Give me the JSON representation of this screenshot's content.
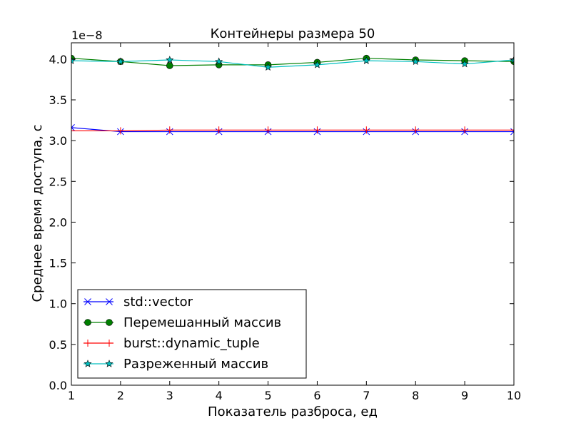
{
  "chart_data": {
    "type": "line",
    "title": "Контейнеры размера 50",
    "xlabel": "Показатель разброса, ед",
    "ylabel": "Среднее время доступа, с",
    "y_offset_label": "1e−8",
    "xlim": [
      1,
      10
    ],
    "ylim": [
      0.0,
      4.2
    ],
    "x_ticks": [
      "1",
      "2",
      "3",
      "4",
      "5",
      "6",
      "7",
      "8",
      "9",
      "10"
    ],
    "y_ticks": [
      "0.0",
      "0.5",
      "1.0",
      "1.5",
      "2.0",
      "2.5",
      "3.0",
      "3.5",
      "4.0"
    ],
    "grid": false,
    "legend_position": "lower-left",
    "x": [
      1,
      2,
      3,
      4,
      5,
      6,
      7,
      8,
      9,
      10
    ],
    "series": [
      {
        "name": "std::vector",
        "color": "#0000ff",
        "marker": "x",
        "values": [
          3.16,
          3.11,
          3.11,
          3.11,
          3.11,
          3.11,
          3.11,
          3.11,
          3.11,
          3.11
        ]
      },
      {
        "name": "Перемешанный массив",
        "color": "#007f00",
        "marker": "circle",
        "values": [
          4.01,
          3.97,
          3.92,
          3.93,
          3.93,
          3.96,
          4.01,
          3.99,
          3.98,
          3.97
        ]
      },
      {
        "name": "burst::dynamic_tuple",
        "color": "#ff0000",
        "marker": "plus",
        "values": [
          3.12,
          3.12,
          3.13,
          3.13,
          3.13,
          3.13,
          3.13,
          3.13,
          3.13,
          3.13
        ]
      },
      {
        "name": "Разреженный массив",
        "color": "#00bfbf",
        "marker": "star",
        "values": [
          3.98,
          3.97,
          3.99,
          3.97,
          3.9,
          3.93,
          3.98,
          3.97,
          3.94,
          3.99
        ]
      }
    ]
  }
}
